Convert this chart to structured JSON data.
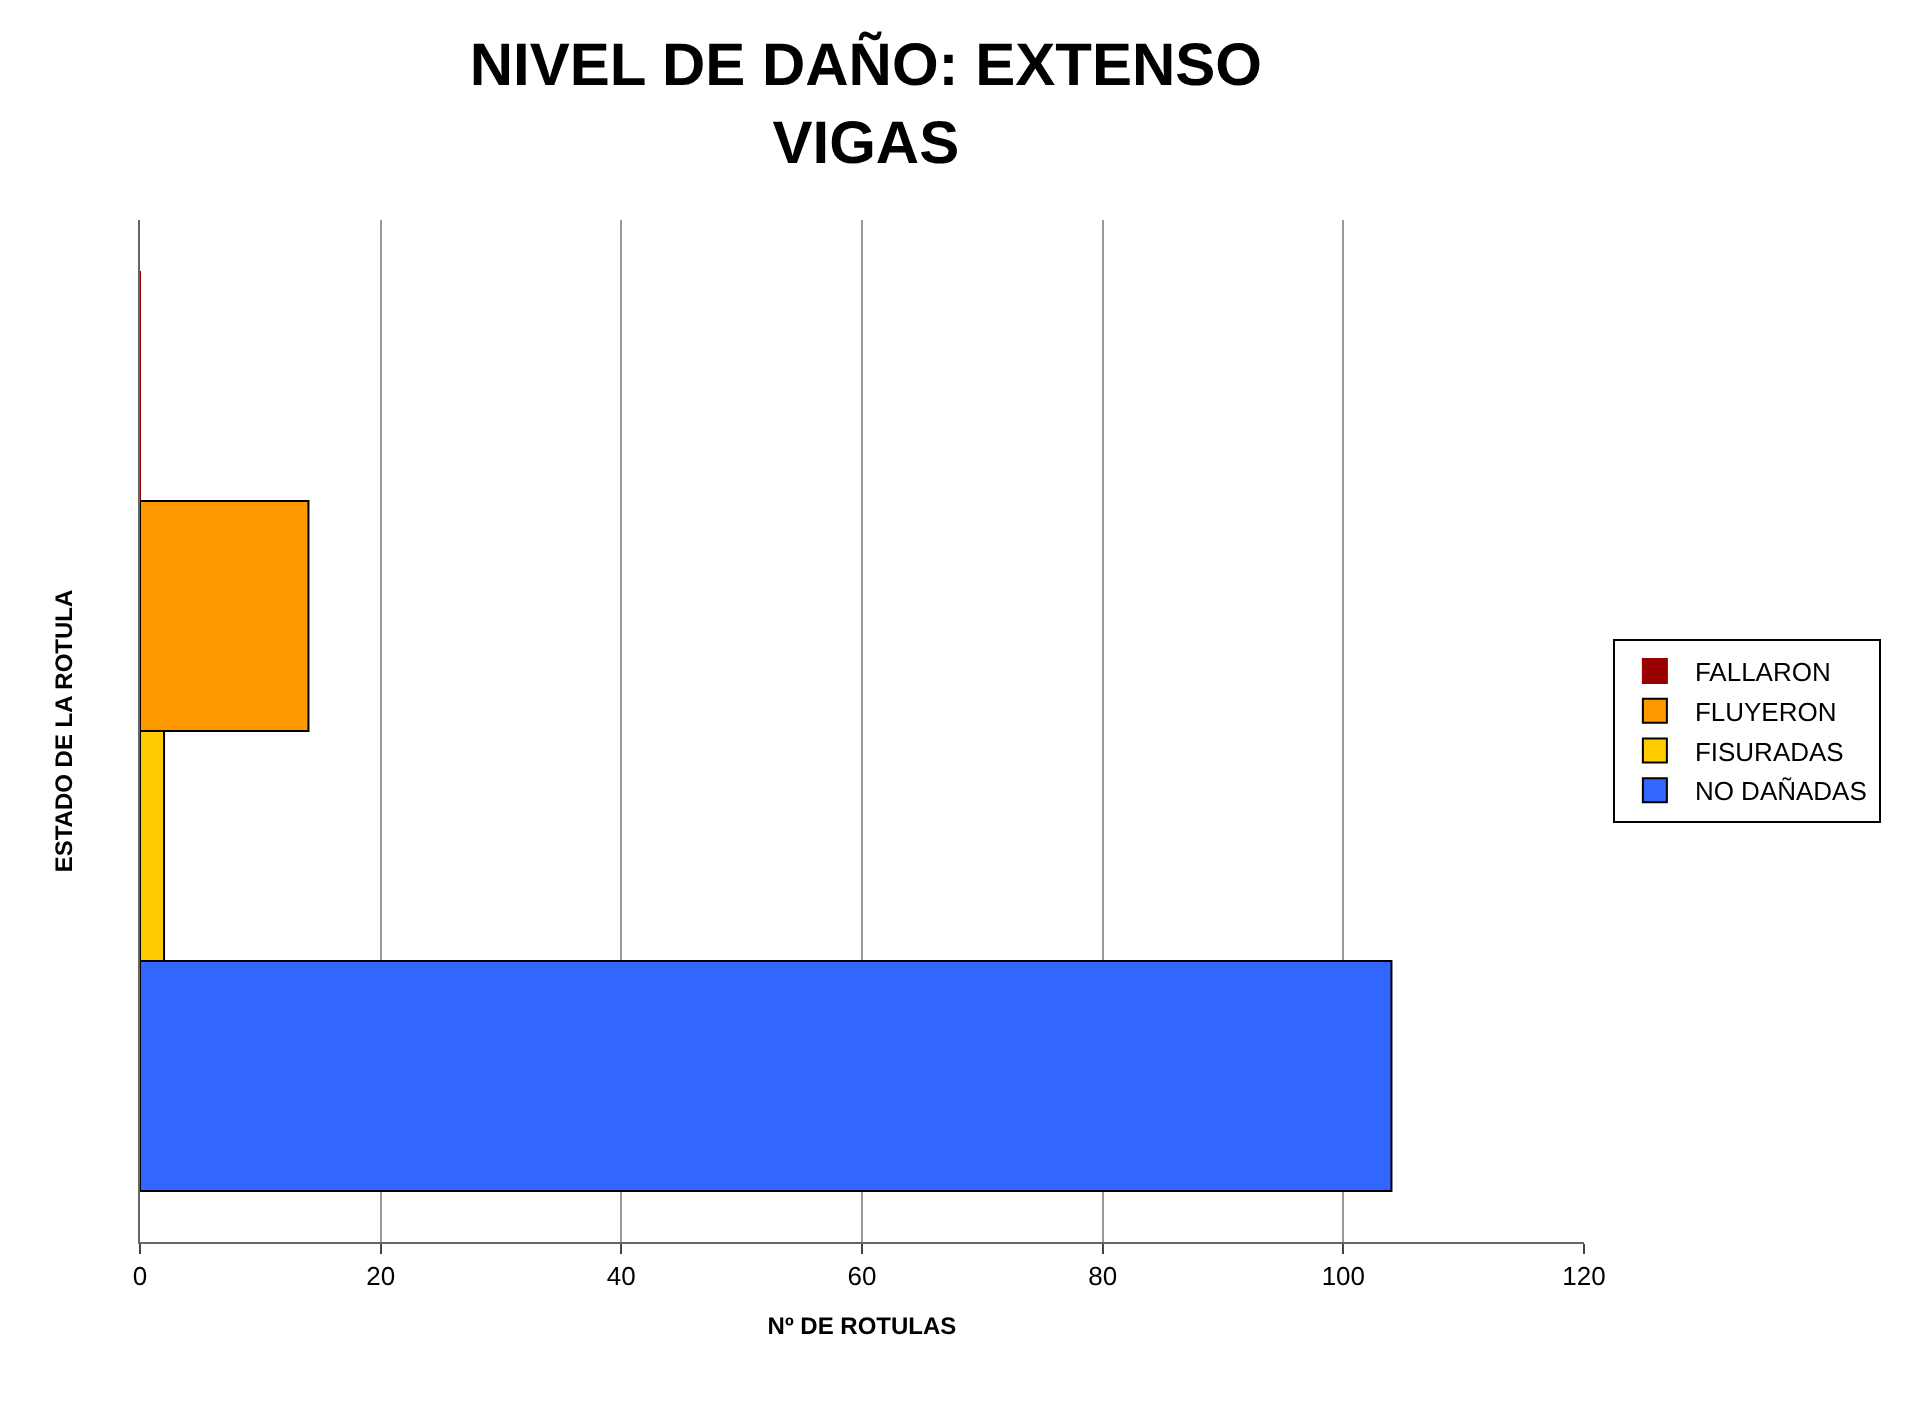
{
  "chart_data": {
    "type": "bar",
    "orientation": "horizontal",
    "title": "NIVEL DE DAÑO: EXTENSO\nVIGAS",
    "xlabel": "Nº DE ROTULAS",
    "ylabel": "ESTADO DE LA ROTULA",
    "categories": [
      null
    ],
    "series": [
      {
        "name": "FALLARON",
        "color": "#990000",
        "values": [
          0
        ]
      },
      {
        "name": "FLUYERON",
        "color": "#ff9900",
        "values": [
          14
        ]
      },
      {
        "name": "FISURADAS",
        "color": "#ffcc00",
        "values": [
          2
        ]
      },
      {
        "name": "NO DAÑADAS",
        "color": "#3366ff",
        "values": [
          104
        ]
      }
    ],
    "xlim": [
      0,
      120
    ],
    "xticks": [
      0,
      20,
      40,
      60,
      80,
      100,
      120
    ],
    "grid": "x",
    "legend": "right"
  }
}
